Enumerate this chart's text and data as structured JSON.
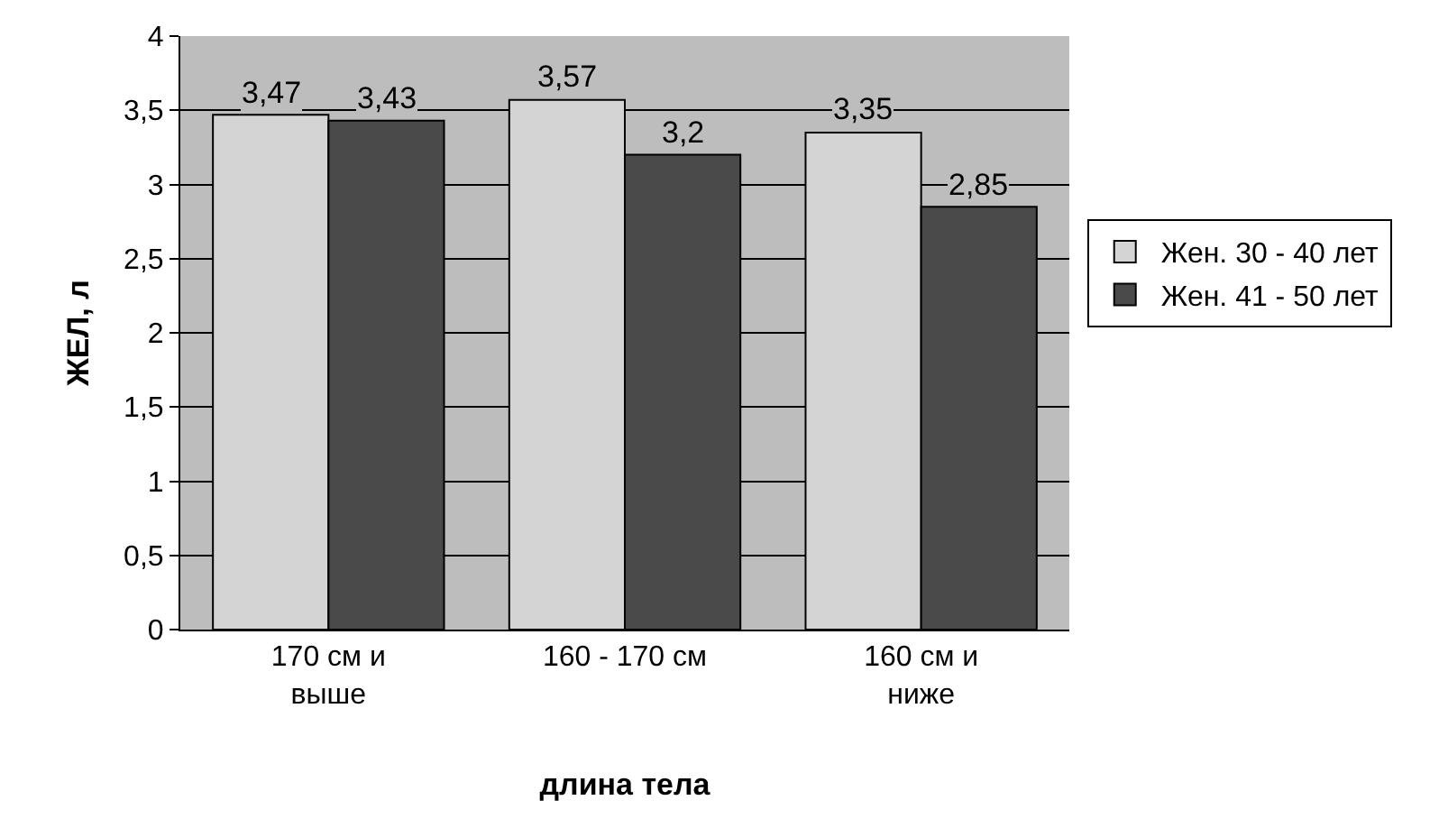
{
  "chart_data": {
    "type": "bar",
    "xlabel": "длина тела",
    "ylabel": "ЖЕЛ, л",
    "categories": [
      "170 см и\nвыше",
      "160 - 170 см",
      "160 см и\nниже"
    ],
    "series": [
      {
        "name": "Жен. 30 - 40 лет",
        "color": "#d4d4d4",
        "values": [
          3.47,
          3.57,
          3.35
        ],
        "value_labels": [
          "3,47",
          "3,57",
          "3,35"
        ]
      },
      {
        "name": "Жен. 41 - 50 лет",
        "color": "#4a4a4a",
        "values": [
          3.43,
          3.2,
          2.85
        ],
        "value_labels": [
          "3,43",
          "3,2",
          "2,85"
        ]
      }
    ],
    "ylim": [
      0,
      4
    ],
    "yticks": [
      0,
      {
        "value": 0.5,
        "label": "0,5"
      },
      1,
      {
        "value": 1.5,
        "label": "1,5"
      },
      2,
      {
        "value": 2.5,
        "label": "2,5"
      },
      3,
      {
        "value": 3.5,
        "label": "3,5"
      },
      4
    ],
    "grid": "y",
    "legend": "right"
  }
}
